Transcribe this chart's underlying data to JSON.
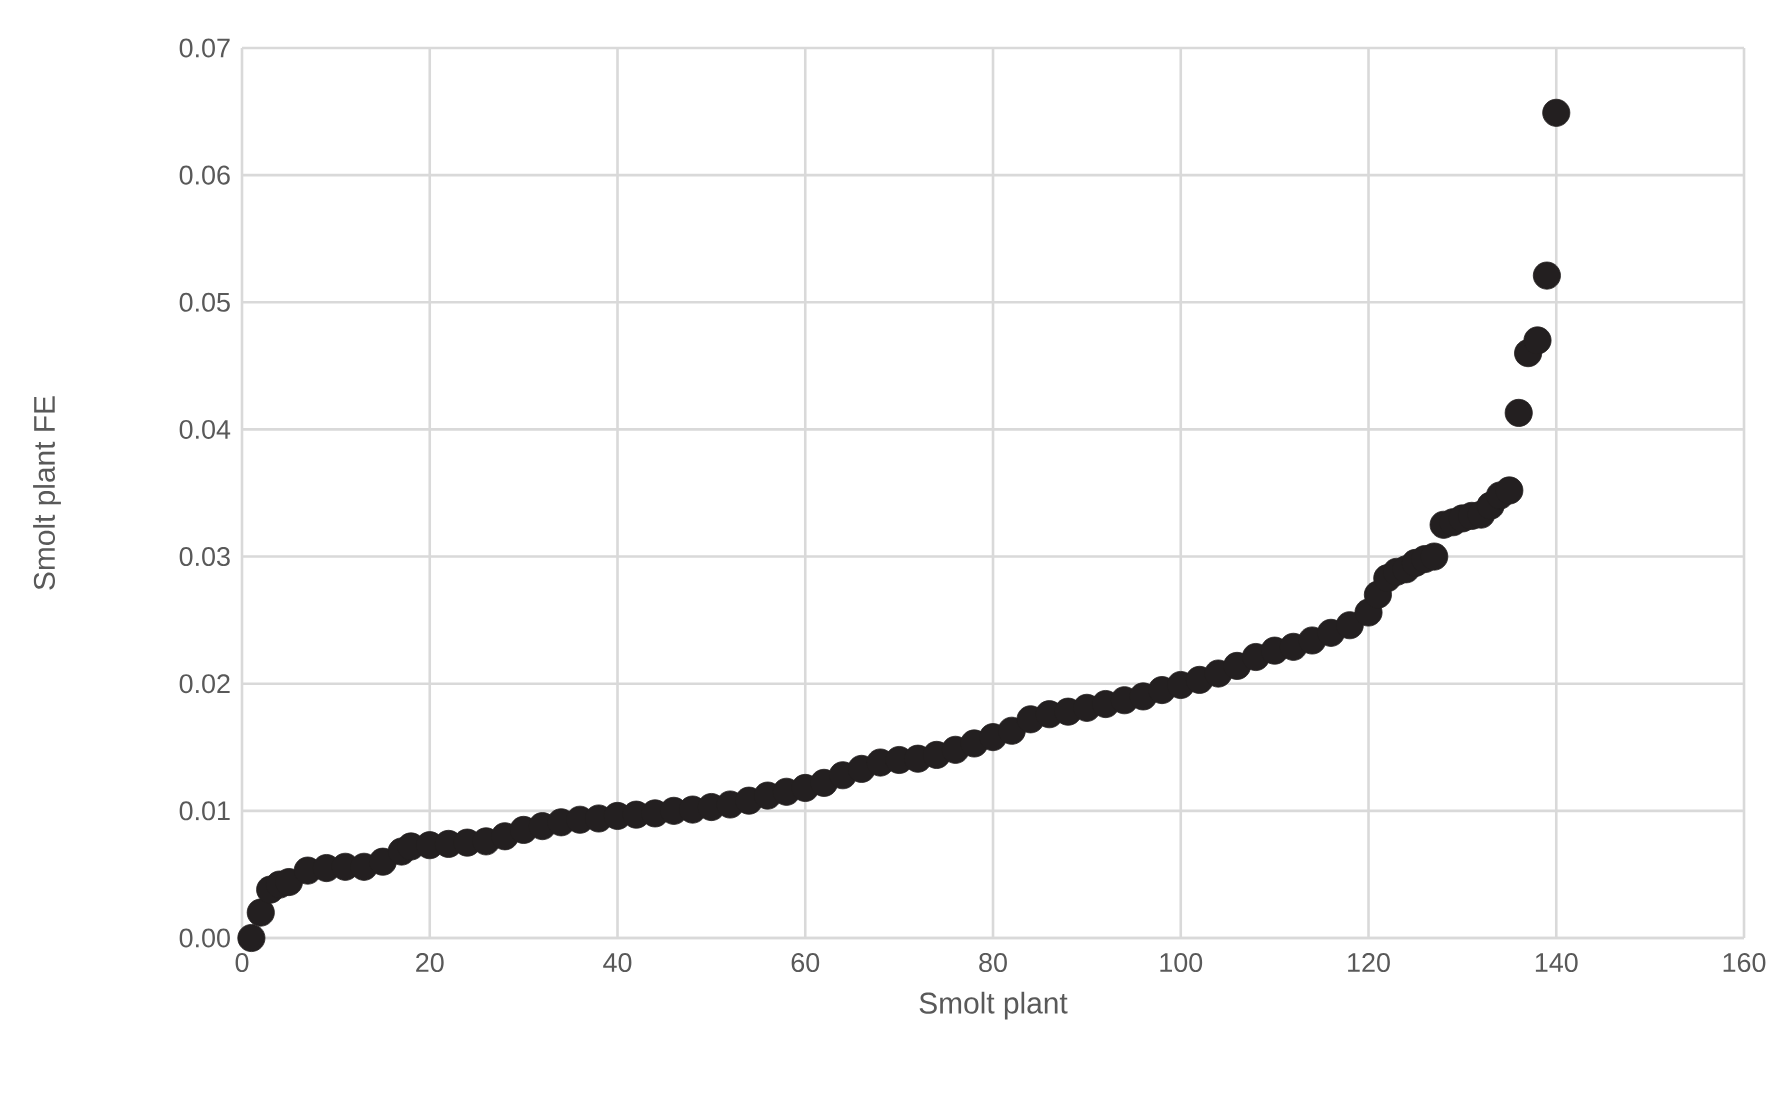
{
  "chart_data": {
    "type": "scatter",
    "xlabel": "Smolt plant",
    "ylabel": "Smolt plant FE",
    "x": [
      1,
      2,
      3,
      4,
      5,
      7,
      9,
      11,
      13,
      15,
      17,
      18,
      20,
      22,
      24,
      26,
      28,
      30,
      32,
      34,
      36,
      38,
      40,
      42,
      44,
      46,
      48,
      50,
      52,
      54,
      56,
      58,
      60,
      62,
      64,
      66,
      68,
      70,
      72,
      74,
      76,
      78,
      80,
      82,
      84,
      86,
      88,
      90,
      92,
      94,
      96,
      98,
      100,
      102,
      104,
      106,
      108,
      110,
      112,
      114,
      116,
      118,
      120,
      121,
      122,
      123,
      124,
      125,
      126,
      127,
      128,
      129,
      130,
      131,
      132,
      133,
      134,
      135,
      136,
      137,
      138,
      139,
      140
    ],
    "series": [
      {
        "color": "#231f20",
        "values": [
          0.0,
          0.002,
          0.0038,
          0.0042,
          0.0044,
          0.0053,
          0.0055,
          0.0056,
          0.0056,
          0.006,
          0.0068,
          0.0072,
          0.0073,
          0.0074,
          0.0075,
          0.0076,
          0.008,
          0.0085,
          0.0088,
          0.0091,
          0.0093,
          0.0094,
          0.0096,
          0.0097,
          0.0098,
          0.01,
          0.0101,
          0.0103,
          0.0105,
          0.0108,
          0.0112,
          0.0115,
          0.0118,
          0.0122,
          0.0128,
          0.0133,
          0.0138,
          0.014,
          0.0141,
          0.0144,
          0.0148,
          0.0153,
          0.0158,
          0.0163,
          0.0172,
          0.0176,
          0.0178,
          0.0181,
          0.0184,
          0.0187,
          0.019,
          0.0195,
          0.0199,
          0.0203,
          0.0208,
          0.0214,
          0.0221,
          0.0226,
          0.0229,
          0.0234,
          0.024,
          0.0246,
          0.0256,
          0.027,
          0.0283,
          0.0288,
          0.029,
          0.0295,
          0.0298,
          0.03,
          0.0325,
          0.0327,
          0.033,
          0.0332,
          0.0333,
          0.034,
          0.0348,
          0.0352,
          0.0413,
          0.046,
          0.047,
          0.0521,
          0.0649
        ]
      }
    ],
    "xlim": [
      0,
      160
    ],
    "xticks": [
      0,
      20,
      40,
      60,
      80,
      100,
      120,
      140,
      160
    ],
    "ylim": [
      0,
      0.07
    ],
    "yticks": [
      {
        "value": 0,
        "label": "0.00"
      },
      {
        "value": 0.01,
        "label": "0.01"
      },
      {
        "value": 0.02,
        "label": "0.02"
      },
      {
        "value": 0.03,
        "label": "0.03"
      },
      {
        "value": 0.04,
        "label": "0.04"
      },
      {
        "value": 0.05,
        "label": "0.05"
      },
      {
        "value": 0.06,
        "label": "0.06"
      },
      {
        "value": 0.07,
        "label": "0.07"
      }
    ],
    "grid": true,
    "marker": "circle"
  }
}
